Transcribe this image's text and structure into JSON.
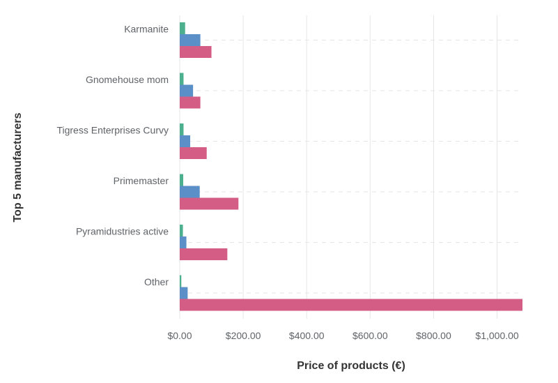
{
  "chart_data": {
    "type": "bar",
    "orientation": "horizontal",
    "xlabel": "Price of products (€)",
    "ylabel": "Top 5 manufacturers",
    "xlim": [
      0,
      1080
    ],
    "xticks": [
      0,
      200,
      400,
      600,
      800,
      1000
    ],
    "xtick_labels": [
      "$0.00",
      "$200.00",
      "$400.00",
      "$600.00",
      "$800.00",
      "$1,000.00"
    ],
    "categories": [
      "Karmanite",
      "Gnomehouse mom",
      "Tigress Enterprises Curvy",
      "Primemaster",
      "Pyramidustries active",
      "Other"
    ],
    "series": [
      {
        "color": "#4caf8e",
        "values": [
          17,
          12,
          12,
          11,
          10,
          5
        ]
      },
      {
        "color": "#5b8fc7",
        "values": [
          65,
          42,
          33,
          63,
          21,
          25
        ]
      },
      {
        "color": "#d45d85",
        "values": [
          100,
          65,
          85,
          185,
          150,
          1080
        ]
      }
    ],
    "grid": true
  }
}
